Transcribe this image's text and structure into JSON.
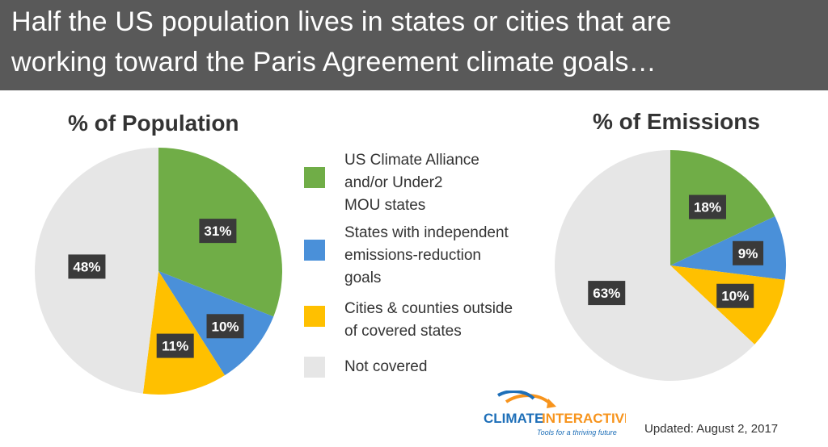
{
  "header": {
    "title_line1": "Half the US population lives in states or cities that are",
    "title_line2": "working toward the Paris Agreement climate goals…"
  },
  "legend": {
    "items": [
      {
        "lines": [
          "US Climate Alliance",
          "and/or Under2",
          "MOU states"
        ],
        "color": "#70ad47"
      },
      {
        "lines": [
          "States with independent",
          "emissions-reduction",
          "goals"
        ],
        "color": "#4a90d9"
      },
      {
        "lines": [
          "Cities & counties outside",
          "of covered states"
        ],
        "color": "#ffc000"
      },
      {
        "lines": [
          "Not covered"
        ],
        "color": "#e6e6e6"
      }
    ]
  },
  "chart_data": [
    {
      "type": "pie",
      "title": "% of Population",
      "categories": [
        "US Climate Alliance and/or Under2 MOU states",
        "States with independent emissions-reduction goals",
        "Cities & counties outside of covered states",
        "Not covered"
      ],
      "values": [
        31,
        10,
        11,
        48
      ],
      "labels": [
        "31%",
        "10%",
        "11%",
        "48%"
      ],
      "colors": [
        "#70ad47",
        "#4a90d9",
        "#ffc000",
        "#e6e6e6"
      ],
      "start": "12 o'clock, clockwise"
    },
    {
      "type": "pie",
      "title": "% of Emissions",
      "categories": [
        "US Climate Alliance and/or Under2 MOU states",
        "States with independent emissions-reduction goals",
        "Cities & counties outside of covered states",
        "Not covered"
      ],
      "values": [
        18,
        9,
        10,
        63
      ],
      "labels": [
        "18%",
        "9%",
        "10%",
        "63%"
      ],
      "colors": [
        "#70ad47",
        "#4a90d9",
        "#ffc000",
        "#e6e6e6"
      ],
      "start": "12 o'clock, clockwise"
    }
  ],
  "logo": {
    "word_climate": "CLIMATE",
    "word_interactive": "INTERACTIVE",
    "tagline": "Tools for a thriving future",
    "colors": {
      "blue": "#1e6fb8",
      "orange": "#f7941d"
    }
  },
  "footer": {
    "updated": "Updated: August 2, 2017"
  }
}
